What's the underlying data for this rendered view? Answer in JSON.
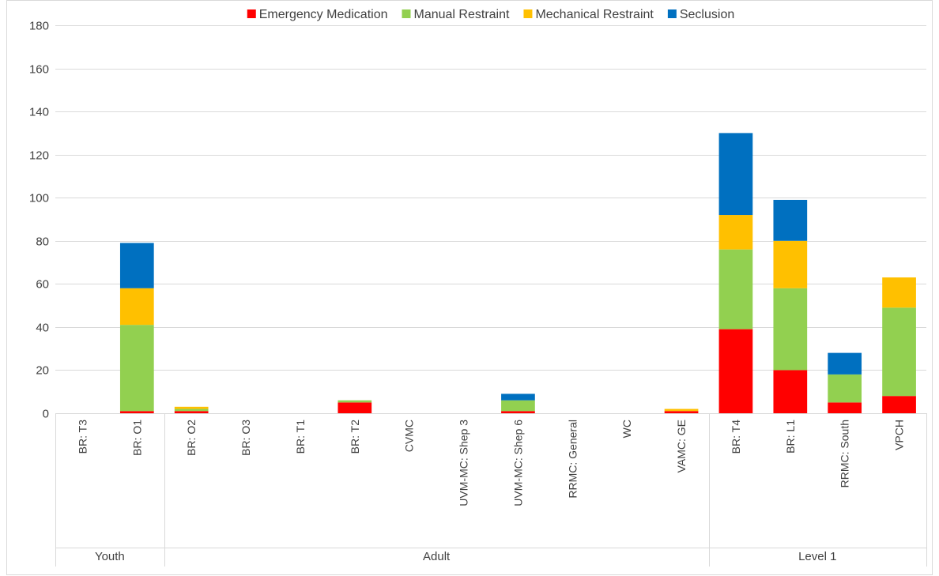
{
  "chart_data": {
    "type": "bar",
    "stacked": true,
    "categories": [
      "BR: T3",
      "BR: O1",
      "BR: O2",
      "BR: O3",
      "BR: T1",
      "BR: T2",
      "CVMC",
      "UVM-MC: Shep 3",
      "UVM-MC: Shep 6",
      "RRMC: General",
      "WC",
      "VAMC: GE",
      "BR: T4",
      "BR: L1",
      "RRMC: South",
      "VPCH"
    ],
    "groups": [
      {
        "label": "Youth",
        "count": 2
      },
      {
        "label": "Adult",
        "count": 10
      },
      {
        "label": "Level 1",
        "count": 4
      }
    ],
    "series": [
      {
        "name": "Emergency Medication",
        "color": "#FF0000",
        "values": [
          0,
          1,
          1,
          0,
          0,
          5,
          0,
          0,
          1,
          0,
          0,
          1,
          39,
          20,
          5,
          8
        ]
      },
      {
        "name": "Manual Restraint",
        "color": "#92D050",
        "values": [
          0,
          40,
          1,
          0,
          0,
          1,
          0,
          0,
          5,
          0,
          0,
          0,
          37,
          38,
          13,
          41
        ]
      },
      {
        "name": "Mechanical Restraint",
        "color": "#FFC000",
        "values": [
          0,
          17,
          1,
          0,
          0,
          0,
          0,
          0,
          0,
          0,
          0,
          1,
          16,
          22,
          0,
          14
        ]
      },
      {
        "name": "Seclusion",
        "color": "#0070C0",
        "values": [
          0,
          21,
          0,
          0,
          0,
          0,
          0,
          0,
          3,
          0,
          0,
          0,
          38,
          19,
          10,
          0
        ]
      }
    ],
    "ylim": [
      0,
      180
    ],
    "yticks": [
      0,
      20,
      40,
      60,
      80,
      100,
      120,
      140,
      160,
      180
    ],
    "grid": true,
    "legend": "top"
  }
}
